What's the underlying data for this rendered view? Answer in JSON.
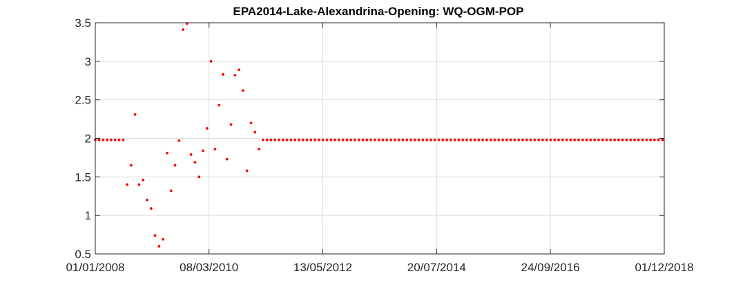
{
  "chart_data": {
    "type": "scatter",
    "title": "EPA2014-Lake-Alexandrina-Opening: WQ-OGM-POP",
    "xlabel": "",
    "ylabel": "",
    "ylim": [
      0.5,
      3.5
    ],
    "xlim": [
      "01/01/2008",
      "01/12/2018"
    ],
    "grid": true,
    "marker_color": "#ff0000",
    "x_ticks": [
      "01/01/2008",
      "08/03/2010",
      "13/05/2012",
      "20/07/2014",
      "24/09/2016",
      "01/12/2018"
    ],
    "y_ticks": [
      "0.5",
      "1",
      "1.5",
      "2",
      "2.5",
      "3",
      "3.5"
    ],
    "series": [
      {
        "points": [
          [
            "2008-01-01",
            1.98
          ],
          [
            "2008-01-28",
            1.98
          ],
          [
            "2008-02-25",
            1.98
          ],
          [
            "2008-03-24",
            1.98
          ],
          [
            "2008-04-21",
            1.98
          ],
          [
            "2008-05-19",
            1.98
          ],
          [
            "2008-06-16",
            1.98
          ],
          [
            "2008-07-14",
            1.98
          ],
          [
            "2008-08-11",
            1.4
          ],
          [
            "2008-09-08",
            1.65
          ],
          [
            "2008-10-06",
            2.31
          ],
          [
            "2008-11-03",
            1.4
          ],
          [
            "2008-12-01",
            1.46
          ],
          [
            "2008-12-29",
            1.2
          ],
          [
            "2009-01-26",
            1.09
          ],
          [
            "2009-02-23",
            0.74
          ],
          [
            "2009-03-23",
            0.6
          ],
          [
            "2009-04-20",
            0.69
          ],
          [
            "2009-05-18",
            1.81
          ],
          [
            "2009-06-15",
            1.32
          ],
          [
            "2009-07-13",
            1.65
          ],
          [
            "2009-08-10",
            1.97
          ],
          [
            "2009-09-07",
            3.41
          ],
          [
            "2009-10-05",
            3.49
          ],
          [
            "2009-11-02",
            1.79
          ],
          [
            "2009-11-30",
            1.69
          ],
          [
            "2009-12-28",
            1.5
          ],
          [
            "2010-01-25",
            1.84
          ],
          [
            "2010-02-22",
            2.13
          ],
          [
            "2010-03-22",
            3.0
          ],
          [
            "2010-04-19",
            1.86
          ],
          [
            "2010-05-17",
            2.43
          ],
          [
            "2010-06-14",
            2.83
          ],
          [
            "2010-07-12",
            1.73
          ],
          [
            "2010-08-09",
            2.18
          ],
          [
            "2010-09-06",
            2.82
          ],
          [
            "2010-10-04",
            2.89
          ],
          [
            "2010-11-01",
            2.62
          ],
          [
            "2010-11-29",
            1.58
          ],
          [
            "2010-12-27",
            2.2
          ],
          [
            "2011-01-24",
            2.08
          ],
          [
            "2011-02-21",
            1.86
          ]
        ],
        "constant_tail": {
          "from": "2011-03-21",
          "to": "2018-12-01",
          "step_days": 28,
          "value": 1.98
        }
      }
    ]
  }
}
